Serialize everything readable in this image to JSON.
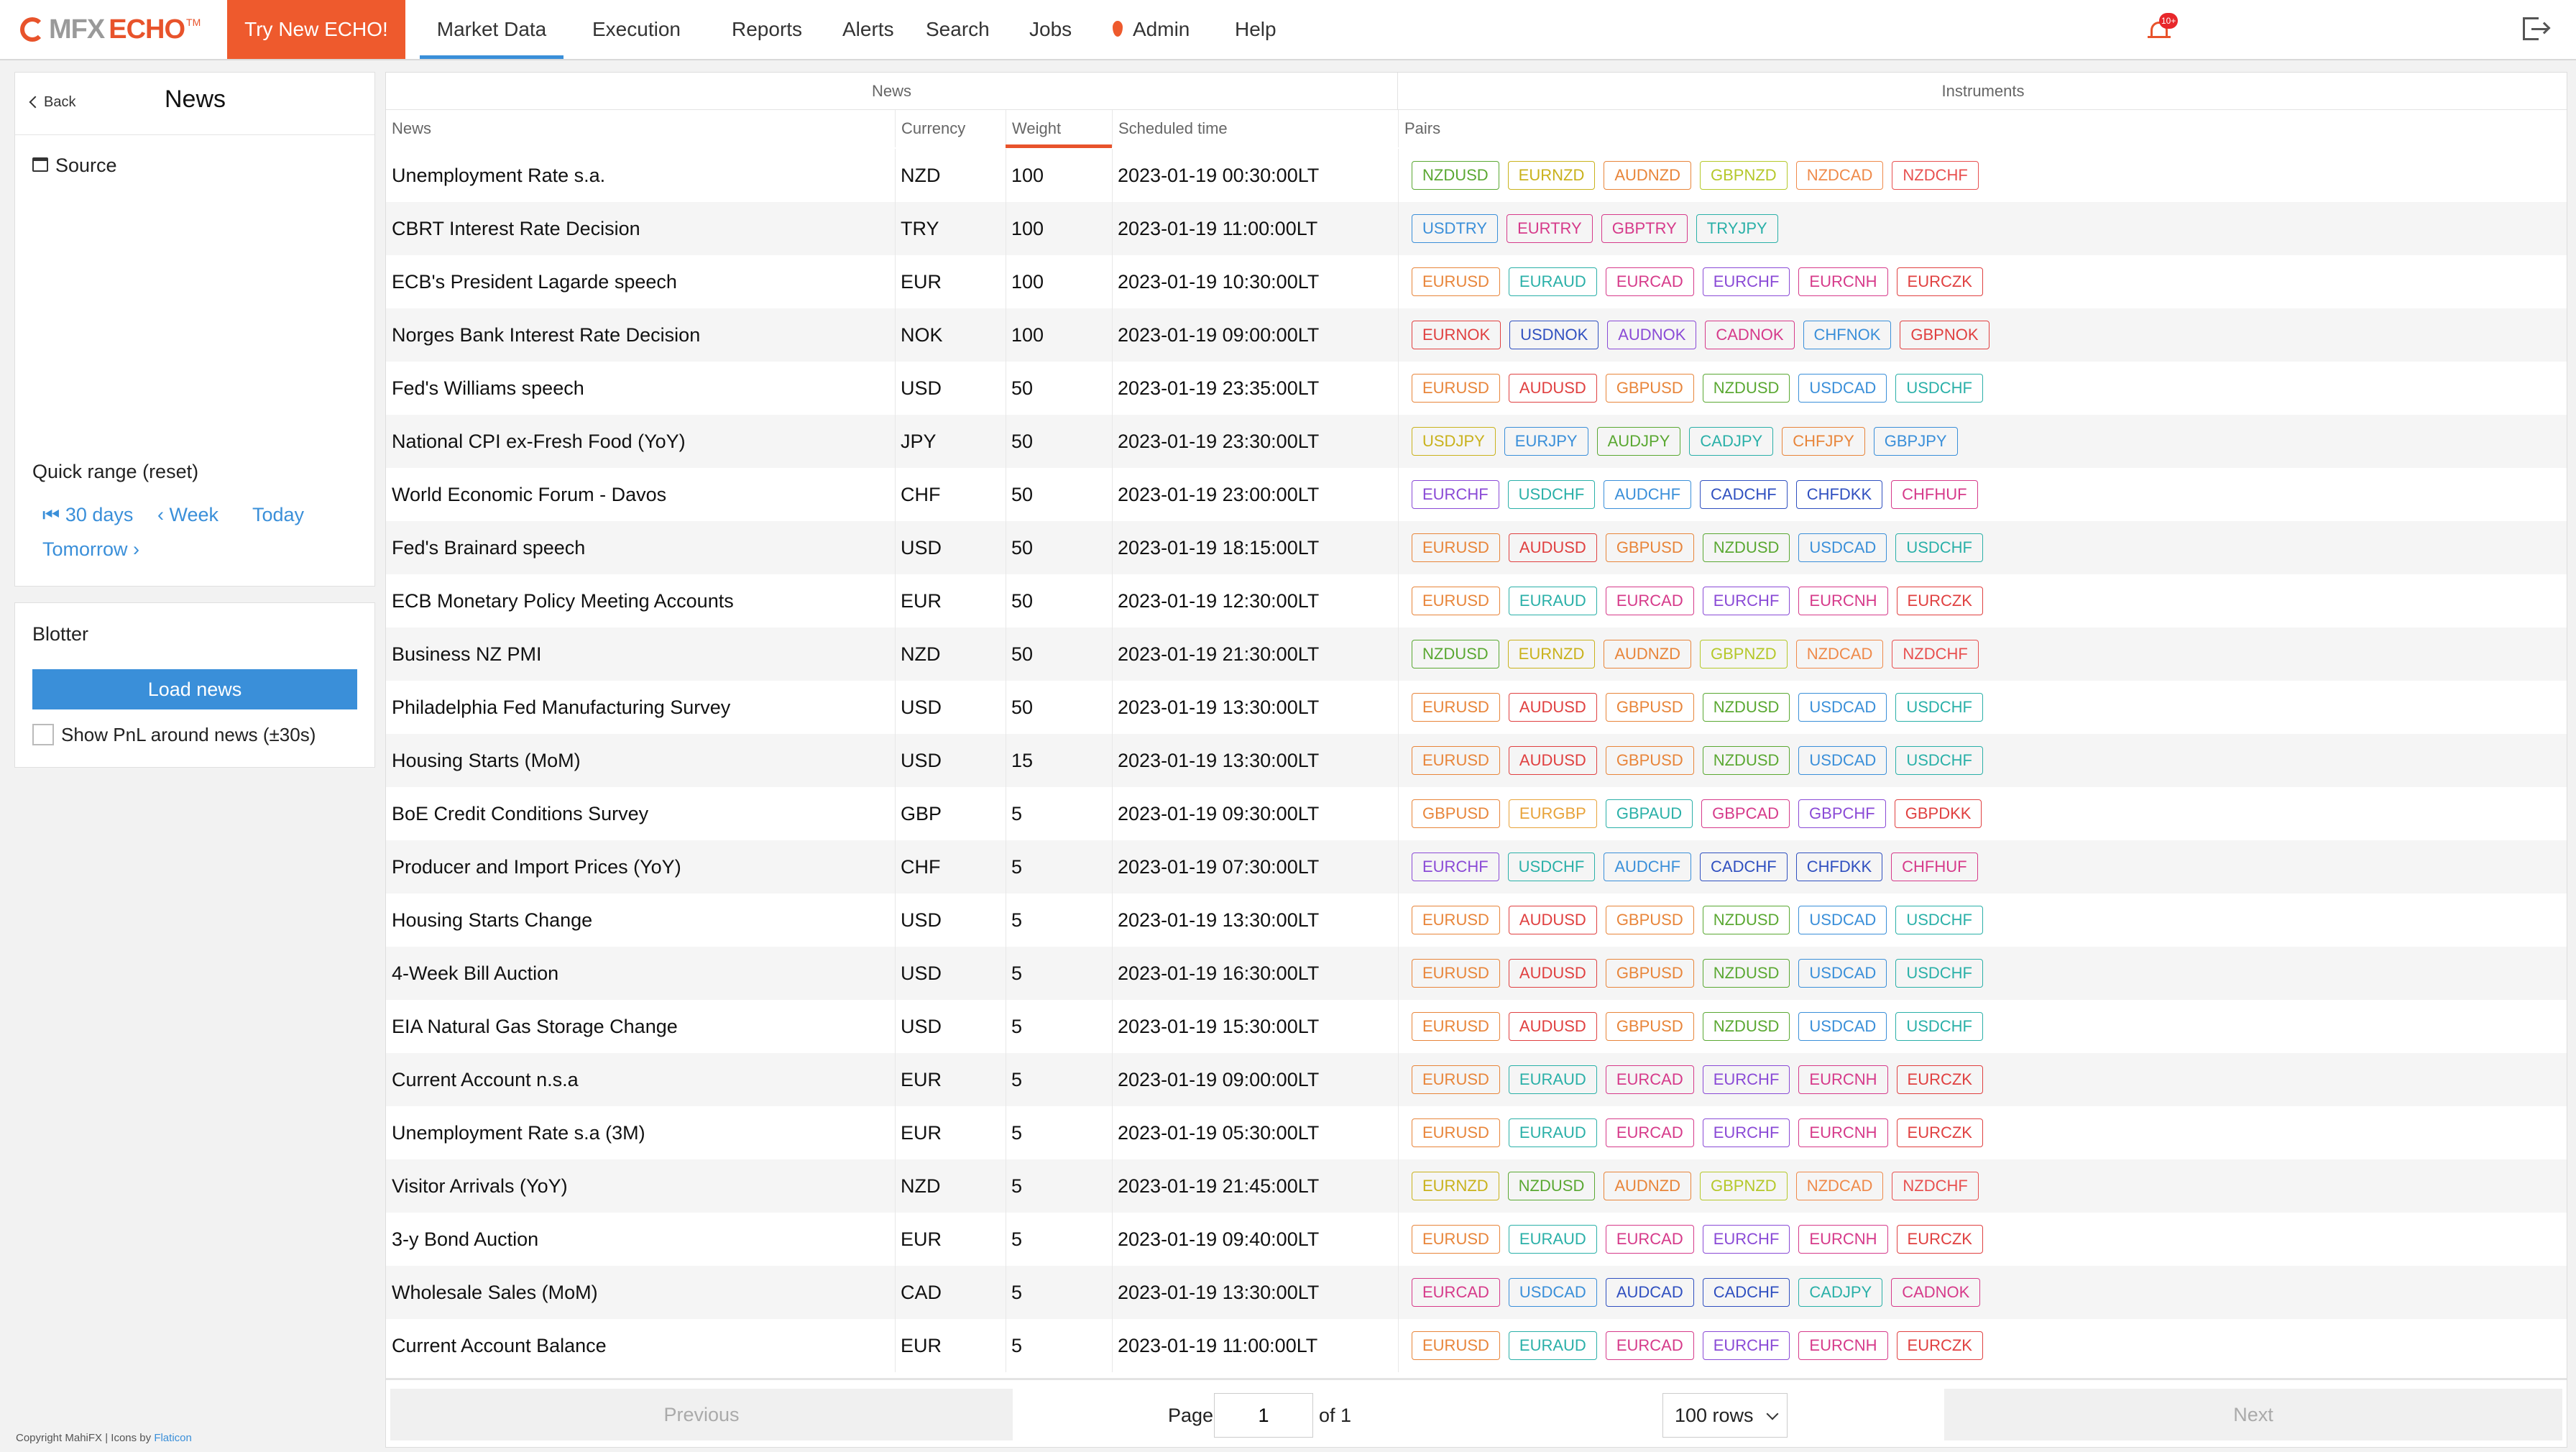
{
  "app": {
    "logo_mfx": "MFX",
    "logo_echo": "ECHO",
    "logo_tm": "TM",
    "try_button": "Try New ECHO!",
    "nav": [
      "Market Data",
      "Execution",
      "Reports",
      "Alerts",
      "Search",
      "Jobs",
      "Admin",
      "Help"
    ],
    "active_nav": "Market Data",
    "notification_badge": "10+"
  },
  "sidebar": {
    "back_label": "Back",
    "title": "News",
    "source_label": "Source",
    "quick_range_title": "Quick range (reset)",
    "quick_range": [
      "30 days",
      "Week",
      "Today",
      "Tomorrow"
    ],
    "blotter_title": "Blotter",
    "load_button": "Load news",
    "pnl_checkbox_label": "Show PnL around news (±30s)",
    "pnl_checked": false,
    "copyright": "Copyright MahiFX | Icons by",
    "copyright_link": "Flaticon"
  },
  "table": {
    "group_news": "News",
    "group_instruments": "Instruments",
    "columns": [
      "News",
      "Currency",
      "Weight",
      "Scheduled time",
      "Pairs"
    ],
    "sorted_column": "Weight",
    "rows": [
      {
        "news": "Unemployment Rate s.a.",
        "currency": "NZD",
        "weight": "100",
        "time": "2023-01-19 00:30:00LT",
        "pairs": [
          "NZDUSD",
          "EURNZD",
          "AUDNZD",
          "GBPNZD",
          "NZDCAD",
          "NZDCHF"
        ]
      },
      {
        "news": "CBRT Interest Rate Decision",
        "currency": "TRY",
        "weight": "100",
        "time": "2023-01-19 11:00:00LT",
        "pairs": [
          "USDTRY",
          "EURTRY",
          "GBPTRY",
          "TRYJPY"
        ]
      },
      {
        "news": "ECB's President Lagarde speech",
        "currency": "EUR",
        "weight": "100",
        "time": "2023-01-19 10:30:00LT",
        "pairs": [
          "EURUSD",
          "EURAUD",
          "EURCAD",
          "EURCHF",
          "EURCNH",
          "EURCZK"
        ]
      },
      {
        "news": "Norges Bank Interest Rate Decision",
        "currency": "NOK",
        "weight": "100",
        "time": "2023-01-19 09:00:00LT",
        "pairs": [
          "EURNOK",
          "USDNOK",
          "AUDNOK",
          "CADNOK",
          "CHFNOK",
          "GBPNOK"
        ]
      },
      {
        "news": "Fed's Williams speech",
        "currency": "USD",
        "weight": "50",
        "time": "2023-01-19 23:35:00LT",
        "pairs": [
          "EURUSD",
          "AUDUSD",
          "GBPUSD",
          "NZDUSD",
          "USDCAD",
          "USDCHF"
        ]
      },
      {
        "news": "National CPI ex-Fresh Food (YoY)",
        "currency": "JPY",
        "weight": "50",
        "time": "2023-01-19 23:30:00LT",
        "pairs": [
          "USDJPY",
          "EURJPY",
          "AUDJPY",
          "CADJPY",
          "CHFJPY",
          "GBPJPY"
        ]
      },
      {
        "news": "World Economic Forum - Davos",
        "currency": "CHF",
        "weight": "50",
        "time": "2023-01-19 23:00:00LT",
        "pairs": [
          "EURCHF",
          "USDCHF",
          "AUDCHF",
          "CADCHF",
          "CHFDKK",
          "CHFHUF"
        ]
      },
      {
        "news": "Fed's Brainard speech",
        "currency": "USD",
        "weight": "50",
        "time": "2023-01-19 18:15:00LT",
        "pairs": [
          "EURUSD",
          "AUDUSD",
          "GBPUSD",
          "NZDUSD",
          "USDCAD",
          "USDCHF"
        ]
      },
      {
        "news": "ECB Monetary Policy Meeting Accounts",
        "currency": "EUR",
        "weight": "50",
        "time": "2023-01-19 12:30:00LT",
        "pairs": [
          "EURUSD",
          "EURAUD",
          "EURCAD",
          "EURCHF",
          "EURCNH",
          "EURCZK"
        ]
      },
      {
        "news": "Business NZ PMI",
        "currency": "NZD",
        "weight": "50",
        "time": "2023-01-19 21:30:00LT",
        "pairs": [
          "NZDUSD",
          "EURNZD",
          "AUDNZD",
          "GBPNZD",
          "NZDCAD",
          "NZDCHF"
        ]
      },
      {
        "news": "Philadelphia Fed Manufacturing Survey",
        "currency": "USD",
        "weight": "50",
        "time": "2023-01-19 13:30:00LT",
        "pairs": [
          "EURUSD",
          "AUDUSD",
          "GBPUSD",
          "NZDUSD",
          "USDCAD",
          "USDCHF"
        ]
      },
      {
        "news": "Housing Starts (MoM)",
        "currency": "USD",
        "weight": "15",
        "time": "2023-01-19 13:30:00LT",
        "pairs": [
          "EURUSD",
          "AUDUSD",
          "GBPUSD",
          "NZDUSD",
          "USDCAD",
          "USDCHF"
        ]
      },
      {
        "news": "BoE Credit Conditions Survey",
        "currency": "GBP",
        "weight": "5",
        "time": "2023-01-19 09:30:00LT",
        "pairs": [
          "GBPUSD",
          "EURGBP",
          "GBPAUD",
          "GBPCAD",
          "GBPCHF",
          "GBPDKK"
        ]
      },
      {
        "news": "Producer and Import Prices (YoY)",
        "currency": "CHF",
        "weight": "5",
        "time": "2023-01-19 07:30:00LT",
        "pairs": [
          "EURCHF",
          "USDCHF",
          "AUDCHF",
          "CADCHF",
          "CHFDKK",
          "CHFHUF"
        ]
      },
      {
        "news": "Housing Starts Change",
        "currency": "USD",
        "weight": "5",
        "time": "2023-01-19 13:30:00LT",
        "pairs": [
          "EURUSD",
          "AUDUSD",
          "GBPUSD",
          "NZDUSD",
          "USDCAD",
          "USDCHF"
        ]
      },
      {
        "news": "4-Week Bill Auction",
        "currency": "USD",
        "weight": "5",
        "time": "2023-01-19 16:30:00LT",
        "pairs": [
          "EURUSD",
          "AUDUSD",
          "GBPUSD",
          "NZDUSD",
          "USDCAD",
          "USDCHF"
        ]
      },
      {
        "news": "EIA Natural Gas Storage Change",
        "currency": "USD",
        "weight": "5",
        "time": "2023-01-19 15:30:00LT",
        "pairs": [
          "EURUSD",
          "AUDUSD",
          "GBPUSD",
          "NZDUSD",
          "USDCAD",
          "USDCHF"
        ]
      },
      {
        "news": "Current Account n.s.a",
        "currency": "EUR",
        "weight": "5",
        "time": "2023-01-19 09:00:00LT",
        "pairs": [
          "EURUSD",
          "EURAUD",
          "EURCAD",
          "EURCHF",
          "EURCNH",
          "EURCZK"
        ]
      },
      {
        "news": "Unemployment Rate s.a (3M)",
        "currency": "EUR",
        "weight": "5",
        "time": "2023-01-19 05:30:00LT",
        "pairs": [
          "EURUSD",
          "EURAUD",
          "EURCAD",
          "EURCHF",
          "EURCNH",
          "EURCZK"
        ]
      },
      {
        "news": "Visitor Arrivals (YoY)",
        "currency": "NZD",
        "weight": "5",
        "time": "2023-01-19 21:45:00LT",
        "pairs": [
          "EURNZD",
          "NZDUSD",
          "AUDNZD",
          "GBPNZD",
          "NZDCAD",
          "NZDCHF"
        ]
      },
      {
        "news": "3-y Bond Auction",
        "currency": "EUR",
        "weight": "5",
        "time": "2023-01-19 09:40:00LT",
        "pairs": [
          "EURUSD",
          "EURAUD",
          "EURCAD",
          "EURCHF",
          "EURCNH",
          "EURCZK"
        ]
      },
      {
        "news": "Wholesale Sales (MoM)",
        "currency": "CAD",
        "weight": "5",
        "time": "2023-01-19 13:30:00LT",
        "pairs": [
          "EURCAD",
          "USDCAD",
          "AUDCAD",
          "CADCHF",
          "CADJPY",
          "CADNOK"
        ]
      },
      {
        "news": "Current Account Balance",
        "currency": "EUR",
        "weight": "5",
        "time": "2023-01-19 11:00:00LT",
        "pairs": [
          "EURUSD",
          "EURAUD",
          "EURCAD",
          "EURCHF",
          "EURCNH",
          "EURCZK"
        ]
      }
    ]
  },
  "pair_colors": {
    "NZDUSD": "#5aa832",
    "EURNZD": "#c9b21c",
    "AUDNZD": "#e8853a",
    "GBPNZD": "#b5c82a",
    "NZDCAD": "#ef8a4a",
    "NZDCHF": "#e85050",
    "USDTRY": "#3a8fd9",
    "EURTRY": "#d63a8a",
    "GBPTRY": "#d63a8a",
    "TRYJPY": "#2ab0a8",
    "EURUSD": "#e8853a",
    "EURAUD": "#2ab0a8",
    "EURCAD": "#d63a8a",
    "EURCHF": "#8a4ad6",
    "EURCNH": "#d63a8a",
    "EURCZK": "#e04040",
    "EURNOK": "#e04040",
    "USDNOK": "#3050c0",
    "AUDNOK": "#8a4ad6",
    "CADNOK": "#d63a8a",
    "CHFNOK": "#3a8fd9",
    "GBPNOK": "#e04040",
    "AUDUSD": "#e04040",
    "GBPUSD": "#e8853a",
    "USDCAD": "#3a8fd9",
    "USDCHF": "#2ab0a8",
    "USDJPY": "#c9b21c",
    "EURJPY": "#3a8fd9",
    "AUDJPY": "#5aa832",
    "CADJPY": "#2ab0a8",
    "CHFJPY": "#e8853a",
    "GBPJPY": "#3a8fd9",
    "AUDCHF": "#3a8fd9",
    "CADCHF": "#3050c0",
    "CHFDKK": "#3050c0",
    "CHFHUF": "#d63a8a",
    "EURGBP": "#e8a33a",
    "GBPAUD": "#2ab0a8",
    "GBPCAD": "#d63a8a",
    "GBPCHF": "#8a4ad6",
    "GBPDKK": "#e04040",
    "AUDCAD": "#3050c0"
  },
  "pagination": {
    "previous": "Previous",
    "page_label": "Page",
    "page_value": "1",
    "of_label": "of 1",
    "rows_option": "100 rows",
    "next": "Next"
  }
}
